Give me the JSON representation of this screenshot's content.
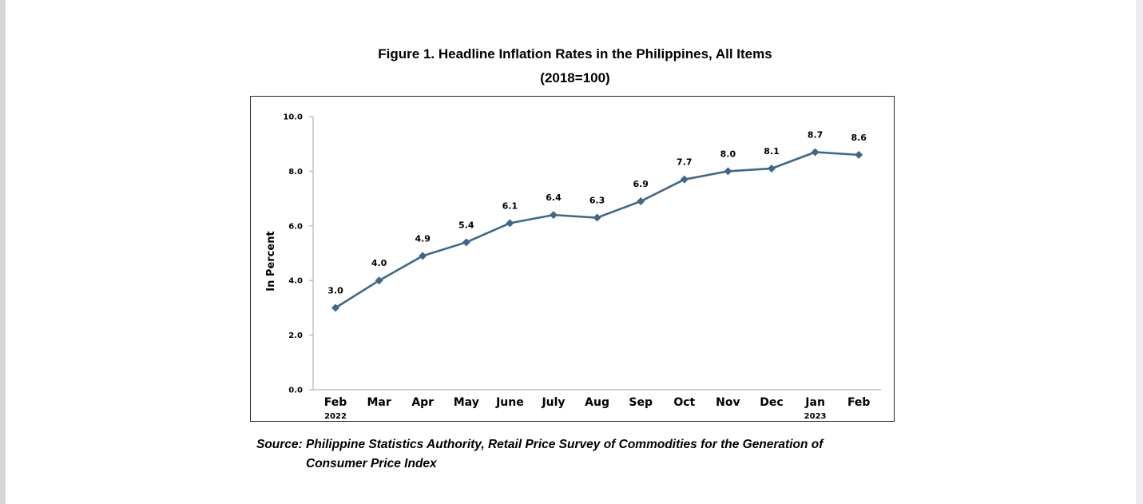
{
  "title_line1": "Figure 1. Headline Inflation Rates in the Philippines, All Items",
  "title_line2": "(2018=100)",
  "source_line1": "Source: Philippine Statistics Authority, Retail Price Survey of Commodities for the Generation of",
  "source_line2": "Consumer Price Index",
  "chart_data": {
    "type": "line",
    "ylabel": "In Percent",
    "ylim": [
      0,
      10
    ],
    "yticks": [
      "0.0",
      "2.0",
      "4.0",
      "6.0",
      "8.0",
      "10.0"
    ],
    "categories": [
      "Feb",
      "Mar",
      "Apr",
      "May",
      "June",
      "July",
      "Aug",
      "Sep",
      "Oct",
      "Nov",
      "Dec",
      "Jan",
      "Feb"
    ],
    "year_labels": [
      "2022",
      "",
      "",
      "",
      "",
      "",
      "",
      "",
      "",
      "",
      "",
      "2023",
      ""
    ],
    "values": [
      3.0,
      4.0,
      4.9,
      5.4,
      6.1,
      6.4,
      6.3,
      6.9,
      7.7,
      8.0,
      8.1,
      8.7,
      8.6
    ],
    "data_labels": [
      "3.0",
      "4.0",
      "4.9",
      "5.4",
      "6.1",
      "6.4",
      "6.3",
      "6.9",
      "7.7",
      "8.0",
      "8.1",
      "8.7",
      "8.6"
    ],
    "line_color": "#3f6787",
    "marker": "diamond",
    "grid": false
  }
}
